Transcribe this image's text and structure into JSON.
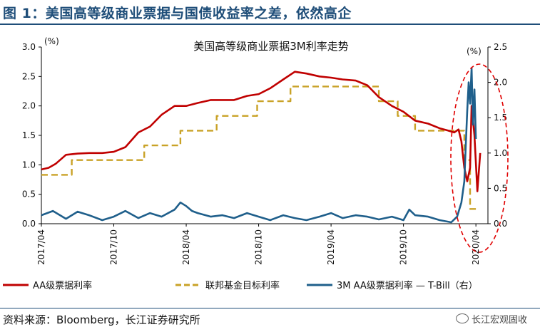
{
  "header": {
    "title": "图 1：美国高等级商业票据与国债收益率之差，依然高企"
  },
  "source": {
    "text": "资料来源：Bloomberg，长江证券研究所"
  },
  "watermark": {
    "text": "长江宏观固收",
    "icon": "wechat-icon"
  },
  "chart_data": {
    "type": "line",
    "title": "美国高等级商业票据3M利率走势",
    "left_axis": {
      "unit": "(%)",
      "ylim": [
        0.0,
        3.0
      ],
      "ticks": [
        "0.0",
        "0.5",
        "1.0",
        "1.5",
        "2.0",
        "2.5",
        "3.0"
      ]
    },
    "right_axis": {
      "unit": "(%)",
      "ylim": [
        0.0,
        2.5
      ],
      "ticks": [
        "0.0",
        "0.5",
        "1.0",
        "1.5",
        "2.0",
        "2.5"
      ]
    },
    "x_range": [
      2017.25,
      2020.333
    ],
    "x_tick_labels": [
      "2017/04",
      "2017/10",
      "2018/04",
      "2018/10",
      "2019/04",
      "2019/10",
      "2020/04"
    ],
    "x_tick_values": [
      2017.25,
      2017.75,
      2018.25,
      2018.75,
      2019.25,
      2019.75,
      2020.25
    ],
    "series": [
      {
        "name": "AA级票据利率",
        "axis": "left",
        "color": "#c00000",
        "style": "solid",
        "x": [
          2017.25,
          2017.3,
          2017.35,
          2017.42,
          2017.5,
          2017.58,
          2017.67,
          2017.75,
          2017.83,
          2017.92,
          2018.0,
          2018.08,
          2018.17,
          2018.25,
          2018.33,
          2018.42,
          2018.5,
          2018.58,
          2018.67,
          2018.75,
          2018.83,
          2018.92,
          2019.0,
          2019.08,
          2019.17,
          2019.25,
          2019.33,
          2019.42,
          2019.5,
          2019.58,
          2019.67,
          2019.75,
          2019.83,
          2019.92,
          2020.0,
          2020.06,
          2020.1,
          2020.13,
          2020.15,
          2020.17,
          2020.19,
          2020.21,
          2020.22,
          2020.24,
          2020.26,
          2020.28
        ],
        "values": [
          0.92,
          0.95,
          1.02,
          1.17,
          1.19,
          1.2,
          1.2,
          1.22,
          1.3,
          1.55,
          1.65,
          1.85,
          2.0,
          2.0,
          2.05,
          2.1,
          2.1,
          2.1,
          2.17,
          2.2,
          2.3,
          2.45,
          2.58,
          2.55,
          2.5,
          2.48,
          2.45,
          2.43,
          2.35,
          2.15,
          2.0,
          1.9,
          1.75,
          1.7,
          1.62,
          1.58,
          1.55,
          1.6,
          1.4,
          0.95,
          0.72,
          0.95,
          2.0,
          1.5,
          0.55,
          1.2
        ]
      },
      {
        "name": "联邦基金目标利率",
        "axis": "left",
        "color": "#c9a227",
        "style": "dashed",
        "x": [
          2017.25,
          2017.46,
          2017.46,
          2017.96,
          2017.96,
          2018.21,
          2018.21,
          2018.46,
          2018.46,
          2018.74,
          2018.74,
          2018.97,
          2018.97,
          2019.58,
          2019.58,
          2019.71,
          2019.71,
          2019.83,
          2019.83,
          2020.17,
          2020.17,
          2020.21,
          2020.21,
          2020.27
        ],
        "values": [
          0.83,
          0.83,
          1.08,
          1.08,
          1.33,
          1.33,
          1.58,
          1.58,
          1.83,
          1.83,
          2.08,
          2.08,
          2.33,
          2.33,
          2.08,
          2.08,
          1.83,
          1.83,
          1.58,
          1.58,
          1.08,
          1.08,
          0.25,
          0.25
        ]
      },
      {
        "name": "3M AA级票据利率 — T-Bill（右）",
        "axis": "right",
        "color": "#1f5f8b",
        "style": "solid",
        "x": [
          2017.25,
          2017.33,
          2017.42,
          2017.5,
          2017.58,
          2017.67,
          2017.75,
          2017.83,
          2017.92,
          2018.0,
          2018.08,
          2018.17,
          2018.21,
          2018.25,
          2018.29,
          2018.33,
          2018.42,
          2018.5,
          2018.58,
          2018.67,
          2018.75,
          2018.83,
          2018.92,
          2019.0,
          2019.08,
          2019.17,
          2019.25,
          2019.33,
          2019.42,
          2019.5,
          2019.58,
          2019.67,
          2019.75,
          2019.79,
          2019.83,
          2019.92,
          2020.0,
          2020.08,
          2020.12,
          2020.15,
          2020.17,
          2020.18,
          2020.19,
          2020.2,
          2020.21,
          2020.22,
          2020.23,
          2020.24,
          2020.25
        ],
        "values": [
          0.12,
          0.18,
          0.07,
          0.17,
          0.12,
          0.05,
          0.1,
          0.18,
          0.08,
          0.15,
          0.1,
          0.2,
          0.3,
          0.25,
          0.18,
          0.15,
          0.1,
          0.12,
          0.08,
          0.15,
          0.1,
          0.05,
          0.12,
          0.08,
          0.05,
          0.1,
          0.15,
          0.08,
          0.12,
          0.1,
          0.06,
          0.1,
          0.05,
          0.2,
          0.12,
          0.1,
          0.05,
          0.02,
          0.1,
          0.3,
          0.6,
          1.1,
          1.6,
          2.0,
          1.7,
          2.2,
          1.4,
          1.9,
          1.2
        ]
      }
    ]
  }
}
